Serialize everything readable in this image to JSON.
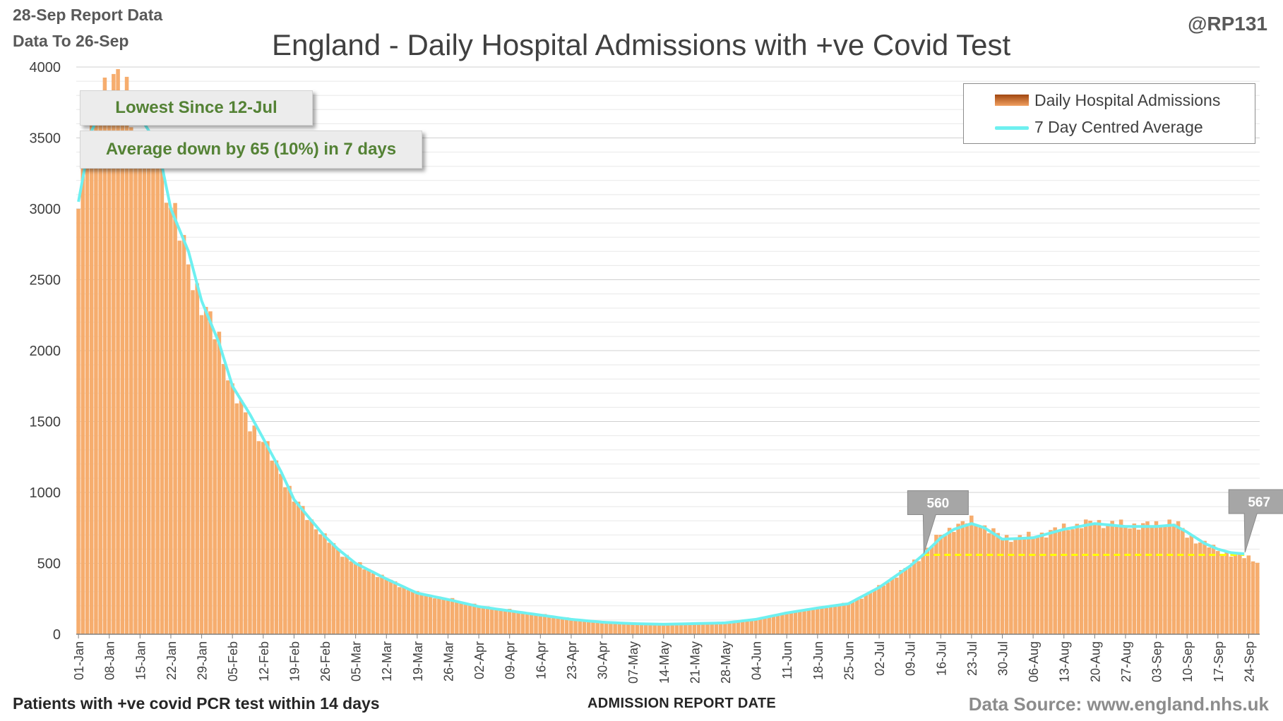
{
  "header": {
    "report_date": "28-Sep Report Data",
    "data_to": "Data To 26-Sep",
    "handle": "@RP131",
    "title": "England - Daily Hospital Admissions with +ve Covid Test"
  },
  "footer": {
    "subtitle": "Patients with +ve covid PCR test within 14 days",
    "xlabel": "ADMISSION  REPORT DATE",
    "source": "Data Source: www.england.nhs.uk"
  },
  "legend": {
    "bar_label": "Daily Hospital Admissions",
    "line_label": "7 Day Centred Average"
  },
  "annotations": {
    "lowest": "Lowest Since 12-Jul",
    "average": "Average down by 65 (10%) in 7 days"
  },
  "colors": {
    "bar_dark": "#a0460f",
    "bar_light": "#f4a868",
    "line": "#6ef0f0",
    "reference_line": "#ffff00",
    "callout_fill": "#a6a6a6",
    "annotation_text": "#548235"
  },
  "chart_data": {
    "type": "bar",
    "title": "England - Daily Hospital Admissions with +ve Covid Test",
    "xlabel": "ADMISSION  REPORT DATE",
    "ylabel": "",
    "ylim": [
      0,
      4000
    ],
    "yticks": [
      0,
      500,
      1000,
      1500,
      2000,
      2500,
      3000,
      3500,
      4000
    ],
    "grid": true,
    "legend_position": "top-right",
    "x_start": "2021-01-01",
    "x_end": "2021-09-26",
    "x_tick_labels": [
      "01-Jan",
      "08-Jan",
      "15-Jan",
      "22-Jan",
      "29-Jan",
      "05-Feb",
      "12-Feb",
      "19-Feb",
      "26-Feb",
      "05-Mar",
      "12-Mar",
      "19-Mar",
      "26-Mar",
      "02-Apr",
      "09-Apr",
      "16-Apr",
      "23-Apr",
      "30-Apr",
      "07-May",
      "14-May",
      "21-May",
      "28-May",
      "04-Jun",
      "11-Jun",
      "18-Jun",
      "25-Jun",
      "02-Jul",
      "09-Jul",
      "16-Jul",
      "23-Jul",
      "30-Jul",
      "06-Aug",
      "13-Aug",
      "20-Aug",
      "27-Aug",
      "03-Sep",
      "10-Sep",
      "17-Sep",
      "24-Sep"
    ],
    "series": [
      {
        "name": "Daily Hospital Admissions",
        "type": "bar",
        "anchors": [
          {
            "date": "01-Jan",
            "value": 3000
          },
          {
            "date": "04-Jan",
            "value": 3550
          },
          {
            "date": "07-Jan",
            "value": 3850
          },
          {
            "date": "10-Jan",
            "value": 3850
          },
          {
            "date": "12-Jan",
            "value": 3850
          },
          {
            "date": "15-Jan",
            "value": 3400
          },
          {
            "date": "19-Jan",
            "value": 3450
          },
          {
            "date": "22-Jan",
            "value": 3000
          },
          {
            "date": "26-Jan",
            "value": 2650
          },
          {
            "date": "29-Jan",
            "value": 2300
          },
          {
            "date": "02-Feb",
            "value": 2100
          },
          {
            "date": "05-Feb",
            "value": 1700
          },
          {
            "date": "09-Feb",
            "value": 1500
          },
          {
            "date": "12-Feb",
            "value": 1350
          },
          {
            "date": "16-Feb",
            "value": 1150
          },
          {
            "date": "19-Feb",
            "value": 950
          },
          {
            "date": "23-Feb",
            "value": 800
          },
          {
            "date": "26-Feb",
            "value": 680
          },
          {
            "date": "01-Mar",
            "value": 600
          },
          {
            "date": "05-Mar",
            "value": 500
          },
          {
            "date": "12-Mar",
            "value": 390
          },
          {
            "date": "19-Mar",
            "value": 290
          },
          {
            "date": "26-Mar",
            "value": 250
          },
          {
            "date": "02-Apr",
            "value": 200
          },
          {
            "date": "09-Apr",
            "value": 170
          },
          {
            "date": "16-Apr",
            "value": 140
          },
          {
            "date": "23-Apr",
            "value": 110
          },
          {
            "date": "30-Apr",
            "value": 85
          },
          {
            "date": "07-May",
            "value": 75
          },
          {
            "date": "14-May",
            "value": 70
          },
          {
            "date": "21-May",
            "value": 75
          },
          {
            "date": "28-May",
            "value": 80
          },
          {
            "date": "04-Jun",
            "value": 105
          },
          {
            "date": "11-Jun",
            "value": 150
          },
          {
            "date": "18-Jun",
            "value": 185
          },
          {
            "date": "25-Jun",
            "value": 215
          },
          {
            "date": "02-Jul",
            "value": 330
          },
          {
            "date": "09-Jul",
            "value": 480
          },
          {
            "date": "12-Jul",
            "value": 570
          },
          {
            "date": "16-Jul",
            "value": 700
          },
          {
            "date": "19-Jul",
            "value": 760
          },
          {
            "date": "23-Jul",
            "value": 800
          },
          {
            "date": "26-Jul",
            "value": 760
          },
          {
            "date": "30-Jul",
            "value": 680
          },
          {
            "date": "06-Aug",
            "value": 690
          },
          {
            "date": "13-Aug",
            "value": 750
          },
          {
            "date": "20-Aug",
            "value": 790
          },
          {
            "date": "27-Aug",
            "value": 770
          },
          {
            "date": "03-Sep",
            "value": 770
          },
          {
            "date": "07-Sep",
            "value": 800
          },
          {
            "date": "10-Sep",
            "value": 700
          },
          {
            "date": "17-Sep",
            "value": 590
          },
          {
            "date": "24-Sep",
            "value": 540
          },
          {
            "date": "26-Sep",
            "value": 520
          }
        ]
      },
      {
        "name": "7 Day Centred Average",
        "type": "line",
        "anchors": [
          {
            "date": "01-Jan",
            "value": 3050
          },
          {
            "date": "04-Jan",
            "value": 3550
          },
          {
            "date": "07-Jan",
            "value": 3750
          },
          {
            "date": "10-Jan",
            "value": 3800
          },
          {
            "date": "13-Jan",
            "value": 3700
          },
          {
            "date": "16-Jan",
            "value": 3600
          },
          {
            "date": "19-Jan",
            "value": 3450
          },
          {
            "date": "22-Jan",
            "value": 3000
          },
          {
            "date": "26-Jan",
            "value": 2700
          },
          {
            "date": "29-Jan",
            "value": 2350
          },
          {
            "date": "02-Feb",
            "value": 2050
          },
          {
            "date": "05-Feb",
            "value": 1750
          },
          {
            "date": "09-Feb",
            "value": 1550
          },
          {
            "date": "12-Feb",
            "value": 1380
          },
          {
            "date": "16-Feb",
            "value": 1150
          },
          {
            "date": "19-Feb",
            "value": 950
          },
          {
            "date": "23-Feb",
            "value": 800
          },
          {
            "date": "26-Feb",
            "value": 690
          },
          {
            "date": "01-Mar",
            "value": 600
          },
          {
            "date": "05-Mar",
            "value": 500
          },
          {
            "date": "12-Mar",
            "value": 390
          },
          {
            "date": "19-Mar",
            "value": 290
          },
          {
            "date": "26-Mar",
            "value": 245
          },
          {
            "date": "02-Apr",
            "value": 195
          },
          {
            "date": "09-Apr",
            "value": 165
          },
          {
            "date": "16-Apr",
            "value": 135
          },
          {
            "date": "23-Apr",
            "value": 105
          },
          {
            "date": "30-Apr",
            "value": 85
          },
          {
            "date": "07-May",
            "value": 75
          },
          {
            "date": "14-May",
            "value": 70
          },
          {
            "date": "21-May",
            "value": 75
          },
          {
            "date": "28-May",
            "value": 80
          },
          {
            "date": "04-Jun",
            "value": 105
          },
          {
            "date": "11-Jun",
            "value": 150
          },
          {
            "date": "18-Jun",
            "value": 185
          },
          {
            "date": "25-Jun",
            "value": 215
          },
          {
            "date": "02-Jul",
            "value": 330
          },
          {
            "date": "09-Jul",
            "value": 480
          },
          {
            "date": "12-Jul",
            "value": 560
          },
          {
            "date": "16-Jul",
            "value": 680
          },
          {
            "date": "19-Jul",
            "value": 740
          },
          {
            "date": "23-Jul",
            "value": 780
          },
          {
            "date": "26-Jul",
            "value": 750
          },
          {
            "date": "30-Jul",
            "value": 670
          },
          {
            "date": "06-Aug",
            "value": 680
          },
          {
            "date": "13-Aug",
            "value": 740
          },
          {
            "date": "20-Aug",
            "value": 780
          },
          {
            "date": "27-Aug",
            "value": 760
          },
          {
            "date": "03-Sep",
            "value": 760
          },
          {
            "date": "07-Sep",
            "value": 770
          },
          {
            "date": "10-Sep",
            "value": 720
          },
          {
            "date": "14-Sep",
            "value": 640
          },
          {
            "date": "17-Sep",
            "value": 600
          },
          {
            "date": "20-Sep",
            "value": 575
          },
          {
            "date": "23-Sep",
            "value": 567
          }
        ]
      }
    ],
    "reference_line": {
      "value": 560,
      "from": "12-Jul",
      "to": "23-Sep",
      "color": "#ffff00",
      "style": "dashed"
    },
    "callouts": [
      {
        "date": "12-Jul",
        "value": 560,
        "label": "560"
      },
      {
        "date": "23-Sep",
        "value": 567,
        "label": "567"
      }
    ]
  }
}
